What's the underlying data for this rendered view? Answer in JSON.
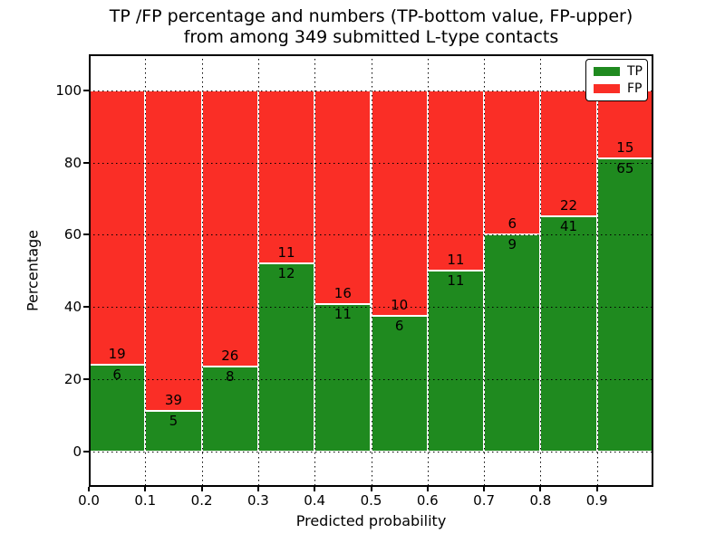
{
  "figure": {
    "title_line1": "TP /FP percentage and numbers (TP-bottom value, FP-upper)",
    "title_line2": "from among 349 submitted L-type contacts",
    "xlabel": "Predicted probability",
    "ylabel": "Percentage"
  },
  "chart_data": {
    "type": "bar",
    "stacked": true,
    "normalized": "each bin scaled to 100 percent, labels show raw counts",
    "total_submitted": 349,
    "categories": [
      "0.0-0.1",
      "0.1-0.2",
      "0.2-0.3",
      "0.3-0.4",
      "0.4-0.5",
      "0.5-0.6",
      "0.6-0.7",
      "0.7-0.8",
      "0.8-0.9",
      "0.9-1.0"
    ],
    "series": [
      {
        "name": "TP",
        "color": "#1f8a1f",
        "counts": [
          6,
          5,
          8,
          12,
          11,
          6,
          11,
          9,
          41,
          65
        ]
      },
      {
        "name": "FP",
        "color": "#fa2e26",
        "counts": [
          19,
          39,
          26,
          11,
          16,
          10,
          11,
          6,
          22,
          15
        ]
      }
    ],
    "title": "TP /FP percentage and numbers (TP-bottom value, FP-upper) from among 349 submitted L-type contacts",
    "xlabel": "Predicted probability",
    "ylabel": "Percentage",
    "x_tick_labels": [
      "0.0",
      "0.1",
      "0.2",
      "0.3",
      "0.4",
      "0.5",
      "0.6",
      "0.7",
      "0.8",
      "0.9"
    ],
    "y_ticks": [
      0,
      20,
      40,
      60,
      80,
      100
    ],
    "xlim": [
      0.0,
      1.0
    ],
    "ylim": [
      -9.8,
      110
    ],
    "grid": "dotted black, horizontal at y ticks and vertical at x ticks, drawn over bars",
    "bar_edge_color": "#ffffff",
    "legend": {
      "position": "upper right",
      "entries": [
        {
          "label": "TP",
          "color": "#1f8a1f"
        },
        {
          "label": "FP",
          "color": "#fa2e26"
        }
      ]
    }
  }
}
